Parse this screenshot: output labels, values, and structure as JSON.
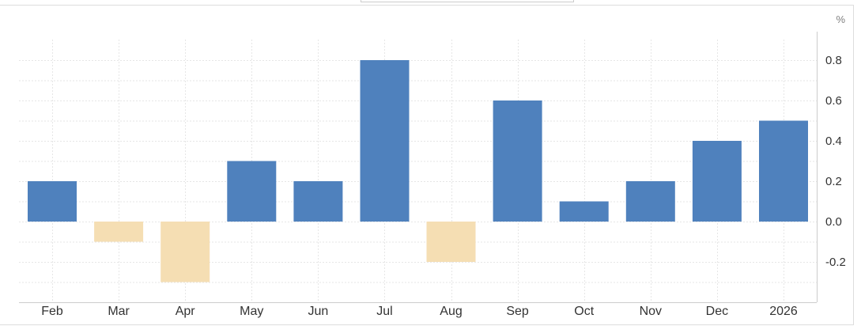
{
  "chart_data": {
    "type": "bar",
    "unit": "%",
    "categories": [
      "Feb",
      "Mar",
      "Apr",
      "May",
      "Jun",
      "Jul",
      "Aug",
      "Sep",
      "Oct",
      "Nov",
      "Dec",
      "2026"
    ],
    "values": [
      0.2,
      -0.1,
      -0.3,
      0.3,
      0.2,
      0.8,
      -0.2,
      0.6,
      0.1,
      0.2,
      0.4,
      0.5
    ],
    "ylim": [
      -0.4,
      0.9
    ],
    "yticks": [
      -0.2,
      0.0,
      0.2,
      0.4,
      0.6,
      0.8
    ],
    "ytick_labels": [
      "-0.2",
      "0.0",
      "0.2",
      "0.4",
      "0.6",
      "0.8"
    ],
    "grid": true,
    "colors": {
      "positive": "#4f81bd",
      "negative": "#f5deb3",
      "grid": "#e6e6e6",
      "axis": "#cccccc",
      "text": "#333333"
    }
  }
}
